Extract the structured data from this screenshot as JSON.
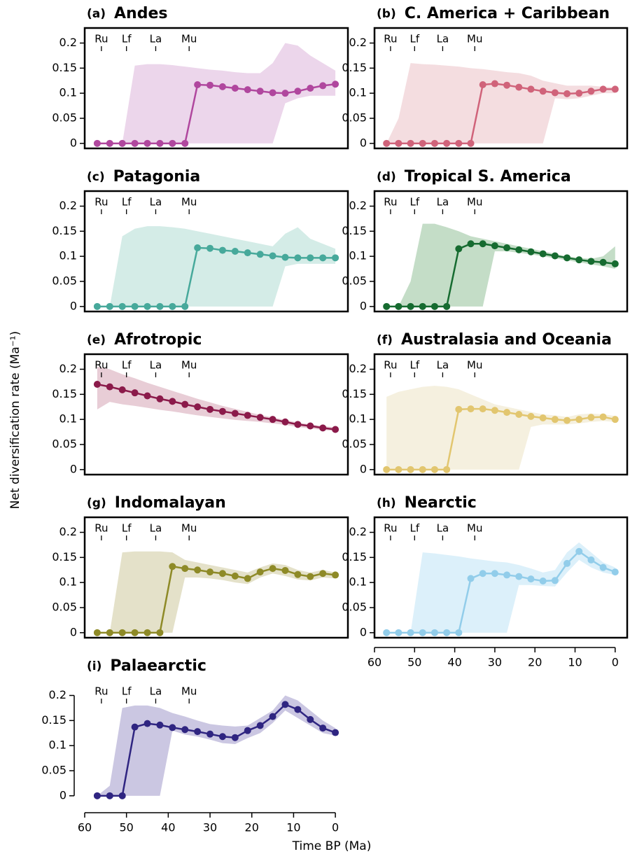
{
  "y_label": "Net diversification rate (Ma⁻¹)",
  "chart_data": [
    {
      "type": "line",
      "tag": "(a)",
      "title": "Andes",
      "color": "#b0479e",
      "band_color": "#ecd6eb",
      "frame": "box",
      "x": [
        57,
        54,
        51,
        48,
        45,
        42,
        39,
        36,
        33,
        30,
        27,
        24,
        21,
        18,
        15,
        12,
        9,
        6,
        3,
        0
      ],
      "values": [
        0,
        0,
        0,
        0,
        0,
        0,
        0,
        0,
        0.117,
        0.116,
        0.113,
        0.11,
        0.107,
        0.104,
        0.101,
        0.1,
        0.104,
        0.11,
        0.115,
        0.118
      ],
      "band_upper": [
        0,
        0,
        0,
        0.155,
        0.158,
        0.158,
        0.156,
        0.153,
        0.15,
        0.147,
        0.145,
        0.142,
        0.14,
        0.14,
        0.16,
        0.2,
        0.195,
        0.175,
        0.16,
        0.145
      ],
      "band_lower": [
        0,
        0,
        0,
        0,
        0,
        0,
        0,
        0,
        0,
        0,
        0,
        0,
        0,
        0,
        0,
        0.08,
        0.09,
        0.095,
        0.095,
        0.095
      ],
      "xlim": [
        60,
        -3
      ],
      "ylim": [
        -0.01,
        0.23
      ],
      "yticks": [
        0,
        0.05,
        0.1,
        0.15,
        0.2
      ],
      "markers": [
        {
          "label": "Ru",
          "x": 56
        },
        {
          "label": "Lf",
          "x": 50
        },
        {
          "label": "La",
          "x": 43
        },
        {
          "label": "Mu",
          "x": 35
        }
      ]
    },
    {
      "type": "line",
      "tag": "(b)",
      "title": "C. America + Caribbean",
      "color": "#d0637a",
      "band_color": "#f4dde0",
      "frame": "box",
      "x": [
        57,
        54,
        51,
        48,
        45,
        42,
        39,
        36,
        33,
        30,
        27,
        24,
        21,
        18,
        15,
        12,
        9,
        6,
        3,
        0
      ],
      "values": [
        0,
        0,
        0,
        0,
        0,
        0,
        0,
        0,
        0.117,
        0.119,
        0.116,
        0.112,
        0.108,
        0.104,
        0.101,
        0.099,
        0.1,
        0.104,
        0.108,
        0.108
      ],
      "band_upper": [
        0,
        0.05,
        0.16,
        0.158,
        0.157,
        0.155,
        0.153,
        0.15,
        0.148,
        0.145,
        0.142,
        0.14,
        0.135,
        0.125,
        0.12,
        0.115,
        0.115,
        0.115,
        0.113,
        0.112
      ],
      "band_lower": [
        0,
        0,
        0,
        0,
        0,
        0,
        0,
        0,
        0,
        0,
        0,
        0,
        0,
        0,
        0.09,
        0.088,
        0.09,
        0.095,
        0.1,
        0.1
      ],
      "xlim": [
        60,
        -3
      ],
      "ylim": [
        -0.01,
        0.23
      ],
      "yticks": [
        0,
        0.05,
        0.1,
        0.15,
        0.2
      ],
      "markers": [
        {
          "label": "Ru",
          "x": 56
        },
        {
          "label": "Lf",
          "x": 50
        },
        {
          "label": "La",
          "x": 43
        },
        {
          "label": "Mu",
          "x": 35
        }
      ]
    },
    {
      "type": "line",
      "tag": "(c)",
      "title": "Patagonia",
      "color": "#47a99b",
      "band_color": "#d4ece7",
      "frame": "box",
      "x": [
        57,
        54,
        51,
        48,
        45,
        42,
        39,
        36,
        33,
        30,
        27,
        24,
        21,
        18,
        15,
        12,
        9,
        6,
        3,
        0
      ],
      "values": [
        0,
        0,
        0,
        0,
        0,
        0,
        0,
        0,
        0.117,
        0.116,
        0.112,
        0.11,
        0.107,
        0.104,
        0.101,
        0.098,
        0.097,
        0.097,
        0.097,
        0.097
      ],
      "band_upper": [
        0,
        0,
        0.14,
        0.155,
        0.16,
        0.16,
        0.158,
        0.155,
        0.15,
        0.145,
        0.14,
        0.135,
        0.13,
        0.125,
        0.12,
        0.145,
        0.158,
        0.135,
        0.125,
        0.115
      ],
      "band_lower": [
        0,
        0,
        0,
        0,
        0,
        0,
        0,
        0,
        0,
        0,
        0,
        0,
        0,
        0,
        0,
        0.08,
        0.085,
        0.085,
        0.085,
        0.085
      ],
      "xlim": [
        60,
        -3
      ],
      "ylim": [
        -0.01,
        0.23
      ],
      "yticks": [
        0,
        0.05,
        0.1,
        0.15,
        0.2
      ],
      "markers": [
        {
          "label": "Ru",
          "x": 56
        },
        {
          "label": "Lf",
          "x": 50
        },
        {
          "label": "La",
          "x": 43
        },
        {
          "label": "Mu",
          "x": 35
        }
      ]
    },
    {
      "type": "line",
      "tag": "(d)",
      "title": "Tropical S. America",
      "color": "#166b30",
      "band_color": "#c4ddc7",
      "frame": "box",
      "x": [
        57,
        54,
        51,
        48,
        45,
        42,
        39,
        36,
        33,
        30,
        27,
        24,
        21,
        18,
        15,
        12,
        9,
        6,
        3,
        0
      ],
      "values": [
        0,
        0,
        0,
        0,
        0,
        0,
        0.115,
        0.125,
        0.125,
        0.121,
        0.117,
        0.113,
        0.109,
        0.105,
        0.101,
        0.097,
        0.093,
        0.09,
        0.088,
        0.085
      ],
      "band_upper": [
        0,
        0,
        0.05,
        0.165,
        0.165,
        0.158,
        0.15,
        0.14,
        0.135,
        0.13,
        0.125,
        0.12,
        0.115,
        0.11,
        0.105,
        0.1,
        0.097,
        0.095,
        0.1,
        0.12
      ],
      "band_lower": [
        0,
        0,
        0,
        0,
        0,
        0,
        0,
        0,
        0,
        0.11,
        0.11,
        0.107,
        0.104,
        0.1,
        0.096,
        0.092,
        0.088,
        0.084,
        0.08,
        0.075
      ],
      "xlim": [
        60,
        -3
      ],
      "ylim": [
        -0.01,
        0.23
      ],
      "yticks": [
        0,
        0.05,
        0.1,
        0.15,
        0.2
      ],
      "markers": [
        {
          "label": "Ru",
          "x": 56
        },
        {
          "label": "Lf",
          "x": 50
        },
        {
          "label": "La",
          "x": 43
        },
        {
          "label": "Mu",
          "x": 35
        }
      ]
    },
    {
      "type": "line",
      "tag": "(e)",
      "title": "Afrotropic",
      "color": "#8b1a4a",
      "band_color": "#e8cdd6",
      "frame": "box",
      "x": [
        57,
        54,
        51,
        48,
        45,
        42,
        39,
        36,
        33,
        30,
        27,
        24,
        21,
        18,
        15,
        12,
        9,
        6,
        3,
        0
      ],
      "values": [
        0.17,
        0.165,
        0.159,
        0.153,
        0.147,
        0.141,
        0.136,
        0.13,
        0.125,
        0.12,
        0.116,
        0.112,
        0.108,
        0.104,
        0.1,
        0.095,
        0.09,
        0.087,
        0.083,
        0.08
      ],
      "band_upper": [
        0.205,
        0.2,
        0.19,
        0.182,
        0.173,
        0.165,
        0.157,
        0.149,
        0.141,
        0.134,
        0.127,
        0.121,
        0.115,
        0.109,
        0.104,
        0.099,
        0.094,
        0.09,
        0.087,
        0.084
      ],
      "band_lower": [
        0.12,
        0.135,
        0.13,
        0.127,
        0.123,
        0.119,
        0.116,
        0.112,
        0.108,
        0.105,
        0.102,
        0.099,
        0.097,
        0.095,
        0.092,
        0.089,
        0.085,
        0.082,
        0.079,
        0.077
      ],
      "xlim": [
        60,
        -3
      ],
      "ylim": [
        -0.01,
        0.23
      ],
      "yticks": [
        0,
        0.05,
        0.1,
        0.15,
        0.2
      ],
      "markers": [
        {
          "label": "Ru",
          "x": 56
        },
        {
          "label": "Lf",
          "x": 50
        },
        {
          "label": "La",
          "x": 43
        },
        {
          "label": "Mu",
          "x": 35
        }
      ]
    },
    {
      "type": "line",
      "tag": "(f)",
      "title": "Australasia and Oceania",
      "color": "#e2c66f",
      "band_color": "#f5f0df",
      "frame": "box",
      "x": [
        57,
        54,
        51,
        48,
        45,
        42,
        39,
        36,
        33,
        30,
        27,
        24,
        21,
        18,
        15,
        12,
        9,
        6,
        3,
        0
      ],
      "values": [
        0,
        0,
        0,
        0,
        0,
        0,
        0.12,
        0.121,
        0.121,
        0.118,
        0.114,
        0.11,
        0.106,
        0.103,
        0.1,
        0.098,
        0.1,
        0.104,
        0.105,
        0.1
      ],
      "band_upper": [
        0.145,
        0.155,
        0.16,
        0.165,
        0.167,
        0.165,
        0.16,
        0.15,
        0.14,
        0.13,
        0.125,
        0.12,
        0.115,
        0.11,
        0.108,
        0.105,
        0.11,
        0.112,
        0.11,
        0.107
      ],
      "band_lower": [
        0,
        0,
        0,
        0,
        0,
        0,
        0,
        0,
        0,
        0,
        0,
        0,
        0.085,
        0.09,
        0.09,
        0.09,
        0.092,
        0.095,
        0.097,
        0.095
      ],
      "xlim": [
        60,
        -3
      ],
      "ylim": [
        -0.01,
        0.23
      ],
      "yticks": [
        0,
        0.05,
        0.1,
        0.15,
        0.2
      ],
      "markers": [
        {
          "label": "Ru",
          "x": 56
        },
        {
          "label": "Lf",
          "x": 50
        },
        {
          "label": "La",
          "x": 43
        },
        {
          "label": "Mu",
          "x": 35
        }
      ]
    },
    {
      "type": "line",
      "tag": "(g)",
      "title": "Indomalayan",
      "color": "#8e8a27",
      "band_color": "#e4e1c9",
      "frame": "box",
      "x": [
        57,
        54,
        51,
        48,
        45,
        42,
        39,
        36,
        33,
        30,
        27,
        24,
        21,
        18,
        15,
        12,
        9,
        6,
        3,
        0
      ],
      "values": [
        0,
        0,
        0,
        0,
        0,
        0,
        0.132,
        0.128,
        0.125,
        0.121,
        0.118,
        0.113,
        0.108,
        0.121,
        0.128,
        0.124,
        0.116,
        0.112,
        0.118,
        0.115
      ],
      "band_upper": [
        0,
        0,
        0.16,
        0.162,
        0.162,
        0.162,
        0.16,
        0.145,
        0.14,
        0.135,
        0.13,
        0.125,
        0.12,
        0.13,
        0.138,
        0.135,
        0.125,
        0.12,
        0.125,
        0.12
      ],
      "band_lower": [
        0,
        0,
        0,
        0,
        0,
        0,
        0,
        0.11,
        0.11,
        0.108,
        0.105,
        0.1,
        0.097,
        0.11,
        0.118,
        0.113,
        0.106,
        0.104,
        0.11,
        0.108
      ],
      "xlim": [
        60,
        -3
      ],
      "ylim": [
        -0.01,
        0.23
      ],
      "yticks": [
        0,
        0.05,
        0.1,
        0.15,
        0.2
      ],
      "markers": [
        {
          "label": "Ru",
          "x": 56
        },
        {
          "label": "Lf",
          "x": 50
        },
        {
          "label": "La",
          "x": 43
        },
        {
          "label": "Mu",
          "x": 35
        }
      ]
    },
    {
      "type": "line",
      "tag": "(h)",
      "title": "Nearctic",
      "color": "#92cdea",
      "band_color": "#dcf0fa",
      "frame": "box",
      "x": [
        57,
        54,
        51,
        48,
        45,
        42,
        39,
        36,
        33,
        30,
        27,
        24,
        21,
        18,
        15,
        12,
        9,
        6,
        3,
        0
      ],
      "values": [
        0,
        0,
        0,
        0,
        0,
        0,
        0,
        0.108,
        0.118,
        0.118,
        0.115,
        0.112,
        0.107,
        0.103,
        0.104,
        0.138,
        0.162,
        0.145,
        0.13,
        0.121
      ],
      "band_upper": [
        0,
        0,
        0,
        0.16,
        0.158,
        0.155,
        0.152,
        0.148,
        0.145,
        0.142,
        0.14,
        0.135,
        0.128,
        0.12,
        0.125,
        0.16,
        0.18,
        0.16,
        0.14,
        0.13
      ],
      "band_lower": [
        0,
        0,
        0,
        0,
        0,
        0,
        0,
        0,
        0,
        0,
        0,
        0.095,
        0.095,
        0.093,
        0.092,
        0.12,
        0.145,
        0.13,
        0.12,
        0.115
      ],
      "xlim": [
        60,
        -3
      ],
      "ylim": [
        -0.01,
        0.23
      ],
      "yticks": [
        0,
        0.05,
        0.1,
        0.15,
        0.2
      ],
      "xticks": [
        60,
        50,
        40,
        30,
        20,
        10,
        0
      ],
      "markers": [
        {
          "label": "Ru",
          "x": 56
        },
        {
          "label": "Lf",
          "x": 50
        },
        {
          "label": "La",
          "x": 43
        },
        {
          "label": "Mu",
          "x": 35
        }
      ]
    },
    {
      "type": "line",
      "tag": "(i)",
      "title": "Palaearctic",
      "color": "#2f2581",
      "band_color": "#cbc7e2",
      "frame": "axes",
      "x": [
        57,
        54,
        51,
        48,
        45,
        42,
        39,
        36,
        33,
        30,
        27,
        24,
        21,
        18,
        15,
        12,
        9,
        6,
        3,
        0
      ],
      "values": [
        0,
        0,
        0,
        0.137,
        0.144,
        0.141,
        0.136,
        0.132,
        0.128,
        0.123,
        0.118,
        0.116,
        0.13,
        0.14,
        0.158,
        0.182,
        0.172,
        0.152,
        0.135,
        0.126
      ],
      "band_upper": [
        0,
        0.02,
        0.175,
        0.18,
        0.18,
        0.175,
        0.165,
        0.158,
        0.15,
        0.143,
        0.14,
        0.138,
        0.14,
        0.155,
        0.17,
        0.2,
        0.19,
        0.17,
        0.15,
        0.135
      ],
      "band_lower": [
        0,
        0,
        0,
        0,
        0,
        0,
        0.13,
        0.122,
        0.118,
        0.112,
        0.105,
        0.103,
        0.115,
        0.125,
        0.145,
        0.17,
        0.155,
        0.14,
        0.125,
        0.12
      ],
      "xlim": [
        60,
        -3
      ],
      "ylim": [
        -0.01,
        0.23
      ],
      "yticks": [
        0,
        0.05,
        0.1,
        0.15,
        0.2
      ],
      "xticks": [
        60,
        50,
        40,
        30,
        20,
        10,
        0
      ],
      "x_label": "Time BP (Ma)",
      "markers": [
        {
          "label": "Ru",
          "x": 56
        },
        {
          "label": "Lf",
          "x": 50
        },
        {
          "label": "La",
          "x": 43
        },
        {
          "label": "Mu",
          "x": 35
        }
      ]
    }
  ]
}
